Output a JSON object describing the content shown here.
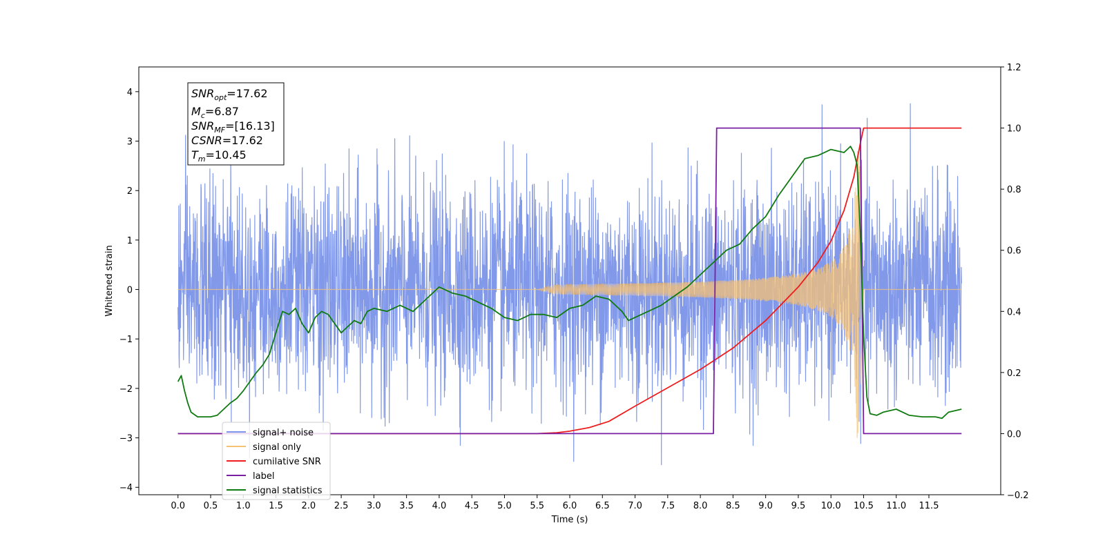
{
  "chart_data": {
    "type": "line",
    "xlabel": "Time (s)",
    "ylabel": "Whitened strain",
    "xlim": [
      -0.6,
      12.6
    ],
    "ylim": [
      -4.15,
      4.5
    ],
    "y2lim": [
      -0.2,
      1.2
    ],
    "x_ticks": [
      "0.0",
      "0.5",
      "1.0",
      "1.5",
      "2.0",
      "2.5",
      "3.0",
      "3.5",
      "4.0",
      "4.5",
      "5.0",
      "5.5",
      "6.0",
      "6.5",
      "7.0",
      "7.5",
      "8.0",
      "8.5",
      "9.0",
      "9.5",
      "10.0",
      "10.5",
      "11.0",
      "11.5"
    ],
    "y_ticks": [
      "−4",
      "−3",
      "−2",
      "−1",
      "0",
      "1",
      "2",
      "3",
      "4"
    ],
    "y2_ticks": [
      "−0.2",
      "0.0",
      "0.2",
      "0.4",
      "0.6",
      "0.8",
      "1.0",
      "1.2"
    ],
    "grid": false,
    "legend_position": "lower-left",
    "colors": {
      "noise": "#7b93e8",
      "signal": "#f5c274",
      "snr": "#ee1c1c",
      "label": "#7b1fa2",
      "stats": "#0f7a0f"
    },
    "info_box": {
      "snr_opt": "17.62",
      "mc": "6.87",
      "snr_mf": "[16.13]",
      "csnr": "17.62",
      "tm": "10.45"
    },
    "series": [
      {
        "name": "signal+ noise",
        "axis": "left",
        "description_values": "whitened noise, roughly within ±3.6, spanning 0.0–12.0 s"
      },
      {
        "name": "signal only",
        "axis": "left",
        "chirp_start": 5.8,
        "merger": 10.45,
        "peak_amplitude": 3.0
      },
      {
        "name": "cumilative SNR",
        "axis": "right",
        "x": [
          0.0,
          5.5,
          5.8,
          6.0,
          6.3,
          6.6,
          7.0,
          7.5,
          8.0,
          8.5,
          9.0,
          9.5,
          9.8,
          10.0,
          10.2,
          10.35,
          10.45,
          10.5,
          12.0
        ],
        "y": [
          0.0,
          0.0,
          0.003,
          0.008,
          0.02,
          0.04,
          0.09,
          0.15,
          0.21,
          0.28,
          0.37,
          0.48,
          0.56,
          0.63,
          0.73,
          0.84,
          0.95,
          1.0,
          1.0
        ]
      },
      {
        "name": "label",
        "axis": "right",
        "x": [
          0.0,
          8.2,
          8.25,
          10.45,
          10.5,
          12.0
        ],
        "y": [
          0.0,
          0.0,
          1.0,
          1.0,
          0.0,
          0.0
        ]
      },
      {
        "name": "signal statistics",
        "axis": "right",
        "x": [
          0.0,
          0.05,
          0.1,
          0.15,
          0.2,
          0.3,
          0.4,
          0.5,
          0.6,
          0.7,
          0.8,
          0.9,
          1.0,
          1.1,
          1.2,
          1.3,
          1.4,
          1.5,
          1.6,
          1.7,
          1.8,
          1.9,
          2.0,
          2.1,
          2.2,
          2.3,
          2.4,
          2.5,
          2.6,
          2.7,
          2.8,
          2.9,
          3.0,
          3.2,
          3.4,
          3.6,
          3.8,
          4.0,
          4.2,
          4.4,
          4.6,
          4.8,
          5.0,
          5.2,
          5.4,
          5.6,
          5.8,
          6.0,
          6.2,
          6.4,
          6.6,
          6.8,
          6.9,
          7.0,
          7.2,
          7.4,
          7.6,
          7.8,
          8.0,
          8.2,
          8.4,
          8.6,
          8.8,
          9.0,
          9.2,
          9.4,
          9.6,
          9.8,
          10.0,
          10.2,
          10.3,
          10.35,
          10.4,
          10.45,
          10.5,
          10.55,
          10.6,
          10.7,
          10.8,
          11.0,
          11.2,
          11.4,
          11.6,
          11.7,
          11.8,
          12.0
        ],
        "y": [
          0.17,
          0.19,
          0.14,
          0.1,
          0.07,
          0.055,
          0.055,
          0.055,
          0.06,
          0.08,
          0.1,
          0.115,
          0.14,
          0.17,
          0.2,
          0.225,
          0.26,
          0.33,
          0.4,
          0.39,
          0.41,
          0.36,
          0.33,
          0.38,
          0.4,
          0.39,
          0.36,
          0.33,
          0.35,
          0.37,
          0.36,
          0.4,
          0.41,
          0.4,
          0.42,
          0.4,
          0.44,
          0.48,
          0.46,
          0.45,
          0.43,
          0.41,
          0.38,
          0.37,
          0.39,
          0.39,
          0.38,
          0.41,
          0.42,
          0.45,
          0.44,
          0.4,
          0.37,
          0.38,
          0.4,
          0.42,
          0.45,
          0.48,
          0.52,
          0.56,
          0.6,
          0.62,
          0.67,
          0.71,
          0.78,
          0.84,
          0.9,
          0.91,
          0.93,
          0.92,
          0.94,
          0.92,
          0.88,
          0.66,
          0.32,
          0.12,
          0.065,
          0.06,
          0.07,
          0.08,
          0.06,
          0.055,
          0.055,
          0.05,
          0.07,
          0.08
        ]
      }
    ]
  }
}
